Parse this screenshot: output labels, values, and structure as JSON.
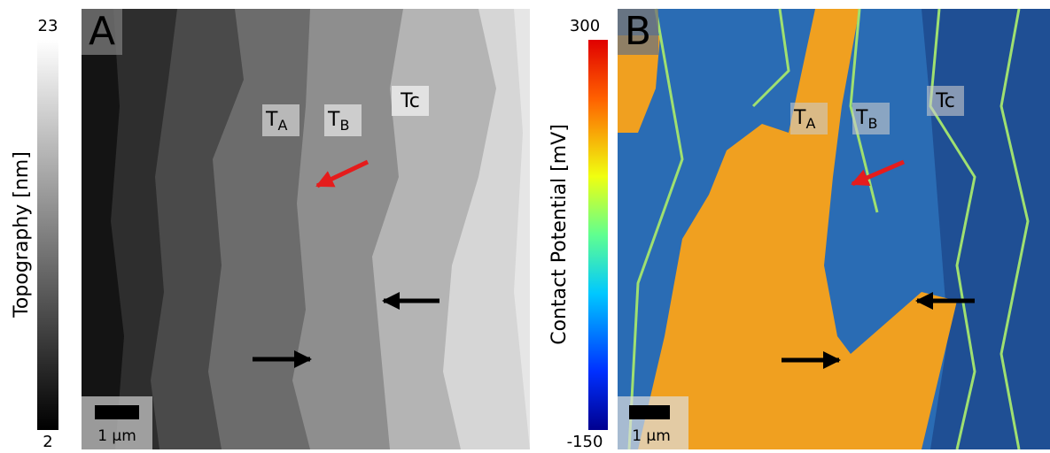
{
  "panels": [
    {
      "letter": "A",
      "colorbar": {
        "max": 23,
        "min": 2,
        "label": "Topography [nm]"
      },
      "labels": [
        {
          "main": "T",
          "sub": "A"
        },
        {
          "main": "T",
          "sub": "B"
        },
        {
          "main": "Tc"
        }
      ],
      "scale_bar": "1 μm"
    },
    {
      "letter": "B",
      "colorbar": {
        "max": 300,
        "min": -150,
        "label": "Contact Potential [mV]"
      },
      "labels": [
        {
          "main": "T",
          "sub": "A"
        },
        {
          "main": "T",
          "sub": "B"
        },
        {
          "main": "Tc"
        }
      ],
      "scale_bar": "1 μm"
    }
  ]
}
